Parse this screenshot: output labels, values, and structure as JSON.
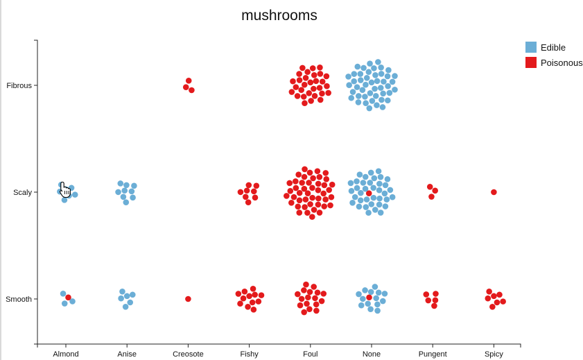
{
  "chart_data": {
    "type": "scatter",
    "title": "mushrooms",
    "x_categories": [
      "Almond",
      "Anise",
      "Creosote",
      "Fishy",
      "Foul",
      "None",
      "Pungent",
      "Spicy"
    ],
    "y_categories": [
      "Fibrous",
      "Scaly",
      "Smooth"
    ],
    "legend": {
      "placement": "top-right",
      "entries": [
        {
          "name": "Edible",
          "color": "#6baed6"
        },
        {
          "name": "Poisonous",
          "color": "#e31a1c"
        }
      ]
    },
    "clusters": [
      {
        "x": "Creosote",
        "y": "Fibrous",
        "edible": 0,
        "poisonous": 3
      },
      {
        "x": "Foul",
        "y": "Fibrous",
        "edible": 0,
        "poisonous": 30
      },
      {
        "x": "None",
        "y": "Fibrous",
        "edible": 46,
        "poisonous": 0
      },
      {
        "x": "Almond",
        "y": "Scaly",
        "edible": 7,
        "poisonous": 0
      },
      {
        "x": "Anise",
        "y": "Scaly",
        "edible": 9,
        "poisonous": 0
      },
      {
        "x": "Fishy",
        "y": "Scaly",
        "edible": 0,
        "poisonous": 8
      },
      {
        "x": "Foul",
        "y": "Scaly",
        "edible": 0,
        "poisonous": 45
      },
      {
        "x": "None",
        "y": "Scaly",
        "edible": 37,
        "poisonous": 1
      },
      {
        "x": "Pungent",
        "y": "Scaly",
        "edible": 0,
        "poisonous": 3
      },
      {
        "x": "Spicy",
        "y": "Scaly",
        "edible": 0,
        "poisonous": 1
      },
      {
        "x": "Almond",
        "y": "Smooth",
        "edible": 3,
        "poisonous": 1
      },
      {
        "x": "Anise",
        "y": "Smooth",
        "edible": 6,
        "poisonous": 0
      },
      {
        "x": "Creosote",
        "y": "Smooth",
        "edible": 0,
        "poisonous": 1
      },
      {
        "x": "Fishy",
        "y": "Smooth",
        "edible": 0,
        "poisonous": 12
      },
      {
        "x": "Foul",
        "y": "Smooth",
        "edible": 0,
        "poisonous": 17
      },
      {
        "x": "None",
        "y": "Smooth",
        "edible": 14,
        "poisonous": 1
      },
      {
        "x": "Pungent",
        "y": "Smooth",
        "edible": 0,
        "poisonous": 5
      },
      {
        "x": "Spicy",
        "y": "Smooth",
        "edible": 0,
        "poisonous": 7
      }
    ]
  },
  "cursor": {
    "icon": "hand-pointer-icon"
  }
}
